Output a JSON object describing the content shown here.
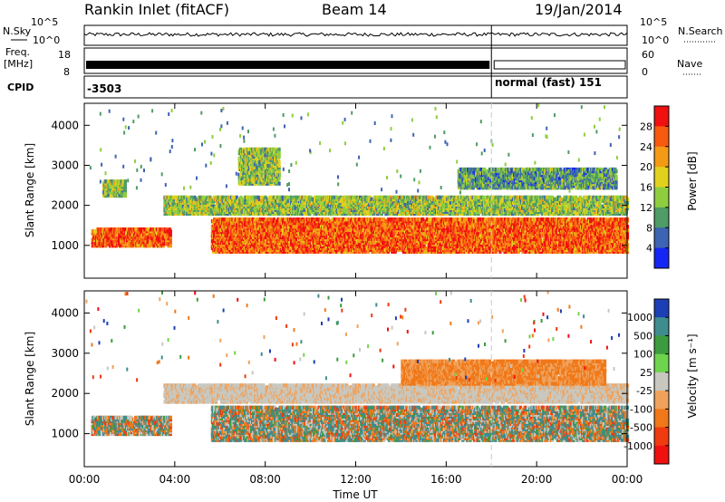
{
  "header": {
    "station": "Rankin Inlet (fitACF)",
    "beam": "Beam 14",
    "date": "19/Jan/2014"
  },
  "top_panels": {
    "nsky_label": "N.Sky",
    "nsky_ticks": [
      "10^5",
      "10^0"
    ],
    "nsearch_label": "N.Search",
    "nsearch_ticks": [
      "10^5",
      "10^0"
    ],
    "freq_label_1": "Freq.",
    "freq_label_2": "[MHz]",
    "freq_ticks": [
      "18",
      "8"
    ],
    "nave_label": "Nave",
    "nave_ticks": [
      "60",
      "0"
    ],
    "cpid_label": "CPID",
    "cpid_values": [
      "-3503",
      "normal (fast) 151"
    ],
    "cpid_switch_time": "18:00"
  },
  "chart_data": [
    {
      "type": "heatmap",
      "name": "power-panel",
      "ylabel": "Slant Range [km]",
      "xlabel": "",
      "x_ticks": [
        "00:00",
        "04:00",
        "08:00",
        "12:00",
        "16:00",
        "20:00",
        "00:00"
      ],
      "xlim_hours": [
        0,
        24
      ],
      "y_ticks": [
        1000,
        2000,
        3000,
        4000
      ],
      "ylim": [
        180,
        4550
      ],
      "colorbar_label": "Power [dB]",
      "colorbar_ticks": [
        "28",
        "24",
        "20",
        "16",
        "12",
        "8",
        "4"
      ],
      "colorbar_colors": [
        "#f01010",
        "#f85a10",
        "#f59a15",
        "#e2d01e",
        "#8ece3e",
        "#4f9c66",
        "#3d63b3",
        "#1526f4"
      ],
      "echo_bands": [
        {
          "range_km": [
            950,
            1400
          ],
          "hours": [
            0.3,
            3.8
          ],
          "level": "high"
        },
        {
          "range_km": [
            800,
            1650
          ],
          "hours": [
            5.6,
            24
          ],
          "level": "high"
        },
        {
          "range_km": [
            1750,
            2200
          ],
          "hours": [
            3.5,
            24
          ],
          "level": "medium"
        },
        {
          "range_km": [
            2200,
            2600
          ],
          "hours": [
            0.8,
            1.8
          ],
          "level": "medium"
        },
        {
          "range_km": [
            2500,
            3400
          ],
          "hours": [
            6.8,
            8.6
          ],
          "level": "medium"
        },
        {
          "range_km": [
            2400,
            2900
          ],
          "hours": [
            16.5,
            23.5
          ],
          "level": "low"
        }
      ]
    },
    {
      "type": "heatmap",
      "name": "velocity-panel",
      "ylabel": "Slant Range [km]",
      "xlabel": "Time UT",
      "x_ticks": [
        "00:00",
        "04:00",
        "08:00",
        "12:00",
        "16:00",
        "20:00",
        "00:00"
      ],
      "xlim_hours": [
        0,
        24
      ],
      "y_ticks": [
        1000,
        2000,
        3000,
        4000
      ],
      "ylim": [
        180,
        4550
      ],
      "colorbar_label": "Velocity [m s⁻¹]",
      "colorbar_ticks": [
        "1000",
        "500",
        "100",
        "25",
        "-25",
        "-100",
        "-500",
        "-1000"
      ],
      "colorbar_colors": [
        "#1c3fb5",
        "#3f8c8f",
        "#3c9b3e",
        "#6fd44d",
        "#c8c8c0",
        "#f0a25c",
        "#f07818",
        "#f03a10",
        "#f01010"
      ],
      "echo_bands": [
        {
          "range_km": [
            950,
            1400
          ],
          "hours": [
            0.3,
            3.8
          ],
          "level": "mixed"
        },
        {
          "range_km": [
            800,
            1650
          ],
          "hours": [
            5.6,
            24
          ],
          "level": "mixed"
        },
        {
          "range_km": [
            1750,
            2200
          ],
          "hours": [
            3.5,
            24
          ],
          "level": "gray"
        },
        {
          "range_km": [
            2200,
            2800
          ],
          "hours": [
            14,
            23
          ],
          "level": "orange"
        }
      ]
    }
  ]
}
